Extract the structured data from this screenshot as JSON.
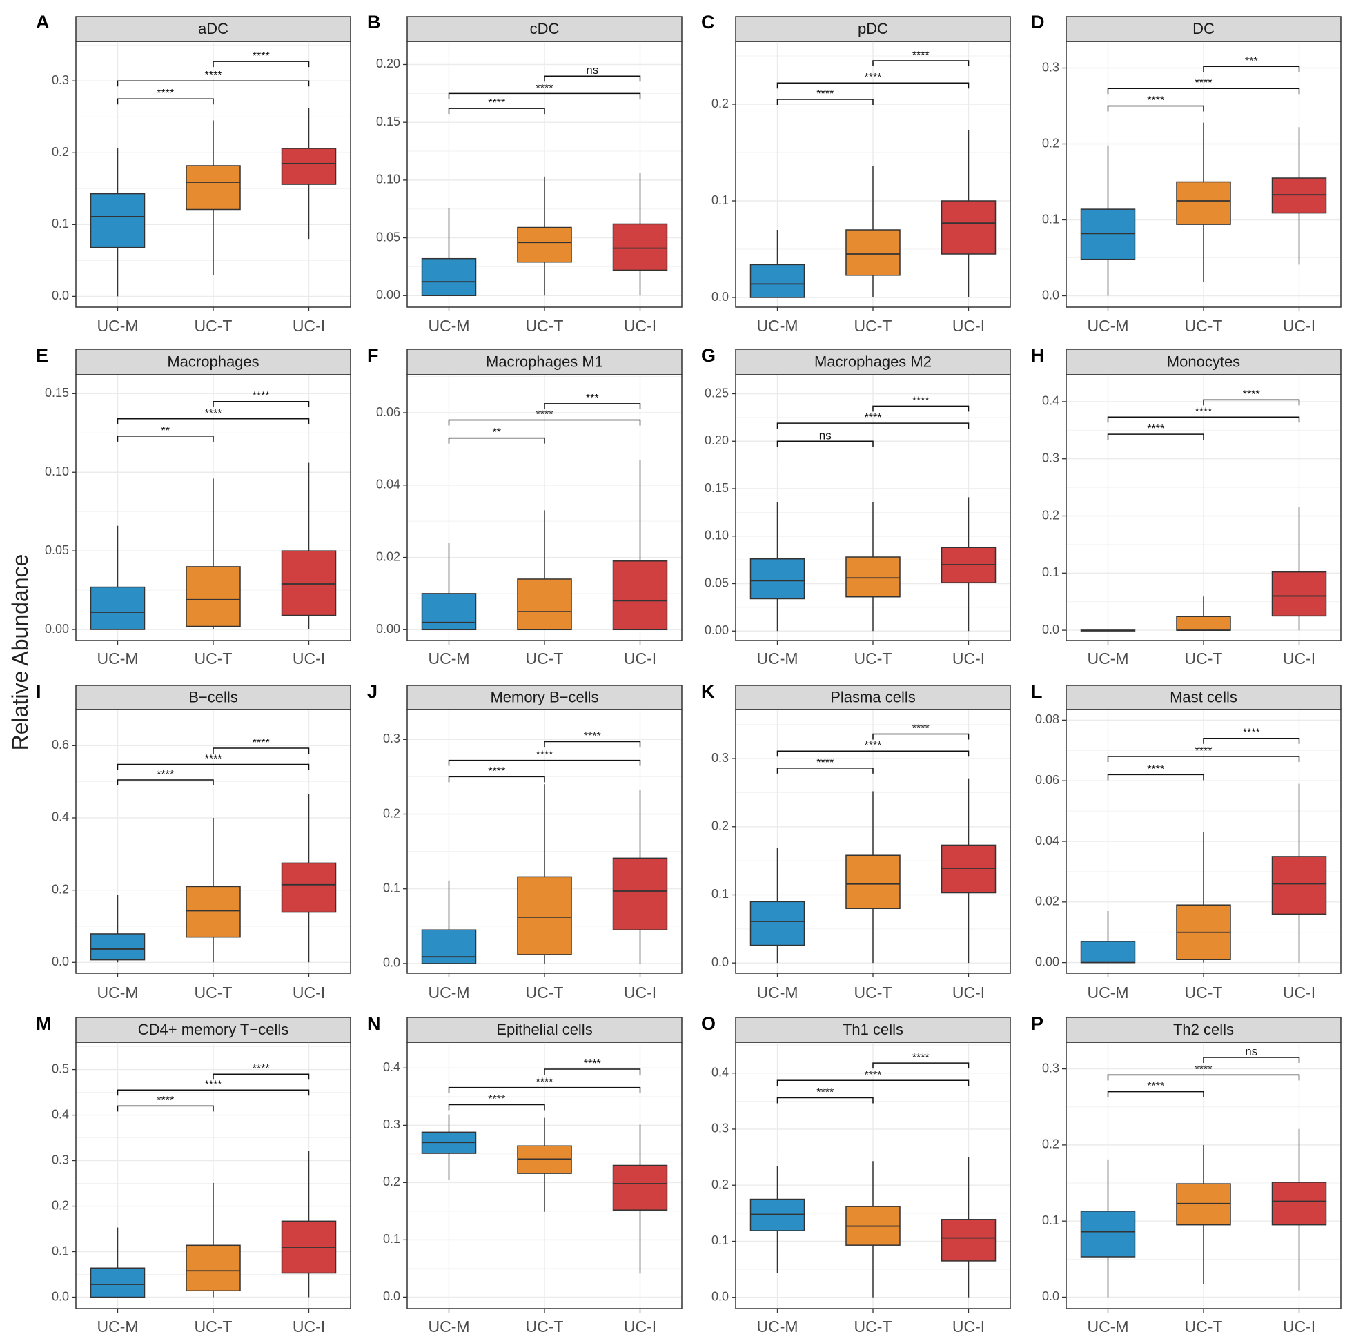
{
  "figure": {
    "ylabel": "Relative Abundance",
    "groups": [
      "UC-M",
      "UC-T",
      "UC-I"
    ],
    "colors": {
      "UC-M": "#2b8fc6",
      "UC-T": "#e78b30",
      "UC-I": "#d04040",
      "strip": "#d9d9d9",
      "grid": "#ebebeb"
    }
  },
  "chart_data": [
    {
      "letter": "A",
      "title": "aDC",
      "type": "box",
      "ylim": [
        -0.015,
        0.355
      ],
      "ticks": [
        0.0,
        0.1,
        0.2,
        0.3
      ],
      "tick_labels": [
        "0.0",
        "0.1",
        "0.2",
        "0.3"
      ],
      "boxes": [
        {
          "group": "UC-M",
          "min": 0.0,
          "q1": 0.068,
          "median": 0.111,
          "q3": 0.143,
          "max": 0.206
        },
        {
          "group": "UC-T",
          "min": 0.03,
          "q1": 0.121,
          "median": 0.159,
          "q3": 0.182,
          "max": 0.245
        },
        {
          "group": "UC-I",
          "min": 0.08,
          "q1": 0.156,
          "median": 0.185,
          "q3": 0.206,
          "max": 0.262
        }
      ],
      "brackets": [
        {
          "from": 0,
          "to": 1,
          "y": 0.275,
          "label": "****"
        },
        {
          "from": 0,
          "to": 2,
          "y": 0.3,
          "label": "****"
        },
        {
          "from": 1,
          "to": 2,
          "y": 0.327,
          "label": "****"
        }
      ]
    },
    {
      "letter": "B",
      "title": "cDC",
      "type": "box",
      "ylim": [
        -0.01,
        0.22
      ],
      "ticks": [
        0.0,
        0.05,
        0.1,
        0.15,
        0.2
      ],
      "tick_labels": [
        "0.00",
        "0.05",
        "0.10",
        "0.15",
        "0.20"
      ],
      "boxes": [
        {
          "group": "UC-M",
          "min": 0.0,
          "q1": 0.0,
          "median": 0.012,
          "q3": 0.032,
          "max": 0.076
        },
        {
          "group": "UC-T",
          "min": 0.0,
          "q1": 0.029,
          "median": 0.046,
          "q3": 0.059,
          "max": 0.103
        },
        {
          "group": "UC-I",
          "min": 0.0,
          "q1": 0.022,
          "median": 0.041,
          "q3": 0.062,
          "max": 0.106
        }
      ],
      "brackets": [
        {
          "from": 0,
          "to": 1,
          "y": 0.162,
          "label": "****"
        },
        {
          "from": 0,
          "to": 2,
          "y": 0.175,
          "label": "****"
        },
        {
          "from": 1,
          "to": 2,
          "y": 0.19,
          "label": "ns"
        }
      ]
    },
    {
      "letter": "C",
      "title": "pDC",
      "type": "box",
      "ylim": [
        -0.01,
        0.265
      ],
      "ticks": [
        0.0,
        0.1,
        0.2
      ],
      "tick_labels": [
        "0.0",
        "0.1",
        "0.2"
      ],
      "boxes": [
        {
          "group": "UC-M",
          "min": 0.0,
          "q1": 0.0,
          "median": 0.014,
          "q3": 0.034,
          "max": 0.07
        },
        {
          "group": "UC-T",
          "min": 0.0,
          "q1": 0.023,
          "median": 0.045,
          "q3": 0.07,
          "max": 0.136
        },
        {
          "group": "UC-I",
          "min": 0.0,
          "q1": 0.045,
          "median": 0.077,
          "q3": 0.1,
          "max": 0.173
        }
      ],
      "brackets": [
        {
          "from": 0,
          "to": 1,
          "y": 0.205,
          "label": "****"
        },
        {
          "from": 0,
          "to": 2,
          "y": 0.222,
          "label": "****"
        },
        {
          "from": 1,
          "to": 2,
          "y": 0.245,
          "label": "****"
        }
      ]
    },
    {
      "letter": "D",
      "title": "DC",
      "type": "box",
      "ylim": [
        -0.015,
        0.335
      ],
      "ticks": [
        0.0,
        0.1,
        0.2,
        0.3
      ],
      "tick_labels": [
        "0.0",
        "0.1",
        "0.2",
        "0.3"
      ],
      "boxes": [
        {
          "group": "UC-M",
          "min": 0.0,
          "q1": 0.048,
          "median": 0.082,
          "q3": 0.114,
          "max": 0.198
        },
        {
          "group": "UC-T",
          "min": 0.018,
          "q1": 0.094,
          "median": 0.125,
          "q3": 0.15,
          "max": 0.228
        },
        {
          "group": "UC-I",
          "min": 0.041,
          "q1": 0.109,
          "median": 0.133,
          "q3": 0.155,
          "max": 0.222
        }
      ],
      "brackets": [
        {
          "from": 0,
          "to": 1,
          "y": 0.25,
          "label": "****"
        },
        {
          "from": 0,
          "to": 2,
          "y": 0.273,
          "label": "****"
        },
        {
          "from": 1,
          "to": 2,
          "y": 0.302,
          "label": "***"
        }
      ]
    },
    {
      "letter": "E",
      "title": "Macrophages",
      "type": "box",
      "ylim": [
        -0.007,
        0.162
      ],
      "ticks": [
        0.0,
        0.05,
        0.1,
        0.15
      ],
      "tick_labels": [
        "0.00",
        "0.05",
        "0.10",
        "0.15"
      ],
      "boxes": [
        {
          "group": "UC-M",
          "min": 0.0,
          "q1": 0.0,
          "median": 0.011,
          "q3": 0.027,
          "max": 0.066
        },
        {
          "group": "UC-T",
          "min": 0.0,
          "q1": 0.002,
          "median": 0.019,
          "q3": 0.04,
          "max": 0.096
        },
        {
          "group": "UC-I",
          "min": 0.0,
          "q1": 0.009,
          "median": 0.029,
          "q3": 0.05,
          "max": 0.106
        }
      ],
      "brackets": [
        {
          "from": 0,
          "to": 1,
          "y": 0.123,
          "label": "**"
        },
        {
          "from": 0,
          "to": 2,
          "y": 0.134,
          "label": "****"
        },
        {
          "from": 1,
          "to": 2,
          "y": 0.145,
          "label": "****"
        }
      ]
    },
    {
      "letter": "F",
      "title": "Macrophages M1",
      "type": "box",
      "ylim": [
        -0.003,
        0.0705
      ],
      "ticks": [
        0.0,
        0.02,
        0.04,
        0.06
      ],
      "tick_labels": [
        "0.00",
        "0.02",
        "0.04",
        "0.06"
      ],
      "boxes": [
        {
          "group": "UC-M",
          "min": 0.0,
          "q1": 0.0,
          "median": 0.002,
          "q3": 0.01,
          "max": 0.024
        },
        {
          "group": "UC-T",
          "min": 0.0,
          "q1": 0.0,
          "median": 0.005,
          "q3": 0.014,
          "max": 0.033
        },
        {
          "group": "UC-I",
          "min": 0.0,
          "q1": 0.0,
          "median": 0.008,
          "q3": 0.019,
          "max": 0.047
        }
      ],
      "brackets": [
        {
          "from": 0,
          "to": 1,
          "y": 0.053,
          "label": "**"
        },
        {
          "from": 0,
          "to": 2,
          "y": 0.058,
          "label": "****"
        },
        {
          "from": 1,
          "to": 2,
          "y": 0.0625,
          "label": "***"
        }
      ]
    },
    {
      "letter": "G",
      "title": "Macrophages M2",
      "type": "box",
      "ylim": [
        -0.01,
        0.27
      ],
      "ticks": [
        0.0,
        0.05,
        0.1,
        0.15,
        0.2,
        0.25
      ],
      "tick_labels": [
        "0.00",
        "0.05",
        "0.10",
        "0.15",
        "0.20",
        "0.25"
      ],
      "boxes": [
        {
          "group": "UC-M",
          "min": 0.0,
          "q1": 0.034,
          "median": 0.053,
          "q3": 0.076,
          "max": 0.136
        },
        {
          "group": "UC-T",
          "min": 0.0,
          "q1": 0.036,
          "median": 0.056,
          "q3": 0.078,
          "max": 0.136
        },
        {
          "group": "UC-I",
          "min": 0.0,
          "q1": 0.051,
          "median": 0.07,
          "q3": 0.088,
          "max": 0.141
        }
      ],
      "brackets": [
        {
          "from": 0,
          "to": 1,
          "y": 0.2,
          "label": "ns"
        },
        {
          "from": 0,
          "to": 2,
          "y": 0.219,
          "label": "****"
        },
        {
          "from": 1,
          "to": 2,
          "y": 0.237,
          "label": "****"
        }
      ]
    },
    {
      "letter": "H",
      "title": "Monocytes",
      "type": "box",
      "ylim": [
        -0.018,
        0.447
      ],
      "ticks": [
        0.0,
        0.1,
        0.2,
        0.3,
        0.4
      ],
      "tick_labels": [
        "0.0",
        "0.1",
        "0.2",
        "0.3",
        "0.4"
      ],
      "boxes": [
        {
          "group": "UC-M",
          "min": 0.0,
          "q1": 0.0,
          "median": 0.0,
          "q3": 0.0,
          "max": 0.0
        },
        {
          "group": "UC-T",
          "min": 0.0,
          "q1": 0.0,
          "median": 0.0,
          "q3": 0.024,
          "max": 0.059
        },
        {
          "group": "UC-I",
          "min": 0.0,
          "q1": 0.025,
          "median": 0.06,
          "q3": 0.102,
          "max": 0.216
        }
      ],
      "brackets": [
        {
          "from": 0,
          "to": 1,
          "y": 0.343,
          "label": "****"
        },
        {
          "from": 0,
          "to": 2,
          "y": 0.373,
          "label": "****"
        },
        {
          "from": 1,
          "to": 2,
          "y": 0.403,
          "label": "****"
        }
      ]
    },
    {
      "letter": "I",
      "title": "B−cells",
      "type": "box",
      "ylim": [
        -0.03,
        0.7
      ],
      "ticks": [
        0.0,
        0.2,
        0.4,
        0.6
      ],
      "tick_labels": [
        "0.0",
        "0.2",
        "0.4",
        "0.6"
      ],
      "boxes": [
        {
          "group": "UC-M",
          "min": 0.0,
          "q1": 0.007,
          "median": 0.037,
          "q3": 0.079,
          "max": 0.186
        },
        {
          "group": "UC-T",
          "min": 0.0,
          "q1": 0.07,
          "median": 0.143,
          "q3": 0.21,
          "max": 0.4
        },
        {
          "group": "UC-I",
          "min": 0.0,
          "q1": 0.139,
          "median": 0.215,
          "q3": 0.275,
          "max": 0.466
        }
      ],
      "brackets": [
        {
          "from": 0,
          "to": 1,
          "y": 0.505,
          "label": "****"
        },
        {
          "from": 0,
          "to": 2,
          "y": 0.548,
          "label": "****"
        },
        {
          "from": 1,
          "to": 2,
          "y": 0.593,
          "label": "****"
        }
      ]
    },
    {
      "letter": "J",
      "title": "Memory B−cells",
      "type": "box",
      "ylim": [
        -0.013,
        0.34
      ],
      "ticks": [
        0.0,
        0.1,
        0.2,
        0.3
      ],
      "tick_labels": [
        "0.0",
        "0.1",
        "0.2",
        "0.3"
      ],
      "boxes": [
        {
          "group": "UC-M",
          "min": 0.0,
          "q1": 0.0,
          "median": 0.009,
          "q3": 0.045,
          "max": 0.111
        },
        {
          "group": "UC-T",
          "min": 0.0,
          "q1": 0.012,
          "median": 0.062,
          "q3": 0.116,
          "max": 0.24
        },
        {
          "group": "UC-I",
          "min": 0.0,
          "q1": 0.045,
          "median": 0.097,
          "q3": 0.141,
          "max": 0.232
        }
      ],
      "brackets": [
        {
          "from": 0,
          "to": 1,
          "y": 0.25,
          "label": "****"
        },
        {
          "from": 0,
          "to": 2,
          "y": 0.272,
          "label": "****"
        },
        {
          "from": 1,
          "to": 2,
          "y": 0.297,
          "label": "****"
        }
      ]
    },
    {
      "letter": "K",
      "title": "Plasma cells",
      "type": "box",
      "ylim": [
        -0.015,
        0.372
      ],
      "ticks": [
        0.0,
        0.1,
        0.2,
        0.3
      ],
      "tick_labels": [
        "0.0",
        "0.1",
        "0.2",
        "0.3"
      ],
      "boxes": [
        {
          "group": "UC-M",
          "min": 0.0,
          "q1": 0.026,
          "median": 0.061,
          "q3": 0.09,
          "max": 0.169
        },
        {
          "group": "UC-T",
          "min": 0.0,
          "q1": 0.08,
          "median": 0.116,
          "q3": 0.158,
          "max": 0.252
        },
        {
          "group": "UC-I",
          "min": 0.0,
          "q1": 0.103,
          "median": 0.139,
          "q3": 0.173,
          "max": 0.271
        }
      ],
      "brackets": [
        {
          "from": 0,
          "to": 1,
          "y": 0.286,
          "label": "****"
        },
        {
          "from": 0,
          "to": 2,
          "y": 0.311,
          "label": "****"
        },
        {
          "from": 1,
          "to": 2,
          "y": 0.336,
          "label": "****"
        }
      ]
    },
    {
      "letter": "L",
      "title": "Mast cells",
      "type": "box",
      "ylim": [
        -0.0035,
        0.0835
      ],
      "ticks": [
        0.0,
        0.02,
        0.04,
        0.06,
        0.08
      ],
      "tick_labels": [
        "0.00",
        "0.02",
        "0.04",
        "0.06",
        "0.08"
      ],
      "boxes": [
        {
          "group": "UC-M",
          "min": 0.0,
          "q1": 0.0,
          "median": 0.0,
          "q3": 0.007,
          "max": 0.017
        },
        {
          "group": "UC-T",
          "min": 0.0,
          "q1": 0.001,
          "median": 0.01,
          "q3": 0.019,
          "max": 0.043
        },
        {
          "group": "UC-I",
          "min": 0.0,
          "q1": 0.016,
          "median": 0.026,
          "q3": 0.035,
          "max": 0.059
        }
      ],
      "brackets": [
        {
          "from": 0,
          "to": 1,
          "y": 0.062,
          "label": "****"
        },
        {
          "from": 0,
          "to": 2,
          "y": 0.068,
          "label": "****"
        },
        {
          "from": 1,
          "to": 2,
          "y": 0.074,
          "label": "****"
        }
      ]
    },
    {
      "letter": "M",
      "title": "CD4+ memory T−cells",
      "type": "box",
      "ylim": [
        -0.025,
        0.56
      ],
      "ticks": [
        0.0,
        0.1,
        0.2,
        0.3,
        0.4,
        0.5
      ],
      "tick_labels": [
        "0.0",
        "0.1",
        "0.2",
        "0.3",
        "0.4",
        "0.5"
      ],
      "boxes": [
        {
          "group": "UC-M",
          "min": 0.0,
          "q1": 0.0,
          "median": 0.028,
          "q3": 0.064,
          "max": 0.153
        },
        {
          "group": "UC-T",
          "min": 0.0,
          "q1": 0.014,
          "median": 0.058,
          "q3": 0.114,
          "max": 0.251
        },
        {
          "group": "UC-I",
          "min": 0.0,
          "q1": 0.053,
          "median": 0.11,
          "q3": 0.167,
          "max": 0.322
        }
      ],
      "brackets": [
        {
          "from": 0,
          "to": 1,
          "y": 0.42,
          "label": "****"
        },
        {
          "from": 0,
          "to": 2,
          "y": 0.455,
          "label": "****"
        },
        {
          "from": 1,
          "to": 2,
          "y": 0.49,
          "label": "****"
        }
      ]
    },
    {
      "letter": "N",
      "title": "Epithelial cells",
      "type": "box",
      "ylim": [
        -0.02,
        0.445
      ],
      "ticks": [
        0.0,
        0.1,
        0.2,
        0.3,
        0.4
      ],
      "tick_labels": [
        "0.0",
        "0.1",
        "0.2",
        "0.3",
        "0.4"
      ],
      "boxes": [
        {
          "group": "UC-M",
          "min": 0.204,
          "q1": 0.251,
          "median": 0.27,
          "q3": 0.288,
          "max": 0.319
        },
        {
          "group": "UC-T",
          "min": 0.149,
          "q1": 0.216,
          "median": 0.241,
          "q3": 0.264,
          "max": 0.313
        },
        {
          "group": "UC-I",
          "min": 0.041,
          "q1": 0.152,
          "median": 0.198,
          "q3": 0.23,
          "max": 0.301
        }
      ],
      "brackets": [
        {
          "from": 0,
          "to": 1,
          "y": 0.336,
          "label": "****"
        },
        {
          "from": 0,
          "to": 2,
          "y": 0.366,
          "label": "****"
        },
        {
          "from": 1,
          "to": 2,
          "y": 0.398,
          "label": "****"
        }
      ]
    },
    {
      "letter": "O",
      "title": "Th1 cells",
      "type": "box",
      "ylim": [
        -0.02,
        0.455
      ],
      "ticks": [
        0.0,
        0.1,
        0.2,
        0.3,
        0.4
      ],
      "tick_labels": [
        "0.0",
        "0.1",
        "0.2",
        "0.3",
        "0.4"
      ],
      "boxes": [
        {
          "group": "UC-M",
          "min": 0.043,
          "q1": 0.119,
          "median": 0.148,
          "q3": 0.175,
          "max": 0.234
        },
        {
          "group": "UC-T",
          "min": 0.0,
          "q1": 0.093,
          "median": 0.127,
          "q3": 0.162,
          "max": 0.243
        },
        {
          "group": "UC-I",
          "min": 0.0,
          "q1": 0.065,
          "median": 0.106,
          "q3": 0.139,
          "max": 0.25
        }
      ],
      "brackets": [
        {
          "from": 0,
          "to": 1,
          "y": 0.356,
          "label": "****"
        },
        {
          "from": 0,
          "to": 2,
          "y": 0.387,
          "label": "****"
        },
        {
          "from": 1,
          "to": 2,
          "y": 0.418,
          "label": "****"
        }
      ]
    },
    {
      "letter": "P",
      "title": "Th2 cells",
      "type": "box",
      "ylim": [
        -0.015,
        0.335
      ],
      "ticks": [
        0.0,
        0.1,
        0.2,
        0.3
      ],
      "tick_labels": [
        "0.0",
        "0.1",
        "0.2",
        "0.3"
      ],
      "boxes": [
        {
          "group": "UC-M",
          "min": 0.0,
          "q1": 0.053,
          "median": 0.086,
          "q3": 0.113,
          "max": 0.181
        },
        {
          "group": "UC-T",
          "min": 0.017,
          "q1": 0.095,
          "median": 0.123,
          "q3": 0.149,
          "max": 0.2
        },
        {
          "group": "UC-I",
          "min": 0.009,
          "q1": 0.095,
          "median": 0.126,
          "q3": 0.151,
          "max": 0.221
        }
      ],
      "brackets": [
        {
          "from": 0,
          "to": 1,
          "y": 0.27,
          "label": "****"
        },
        {
          "from": 0,
          "to": 2,
          "y": 0.292,
          "label": "****"
        },
        {
          "from": 1,
          "to": 2,
          "y": 0.315,
          "label": "ns"
        }
      ]
    }
  ]
}
